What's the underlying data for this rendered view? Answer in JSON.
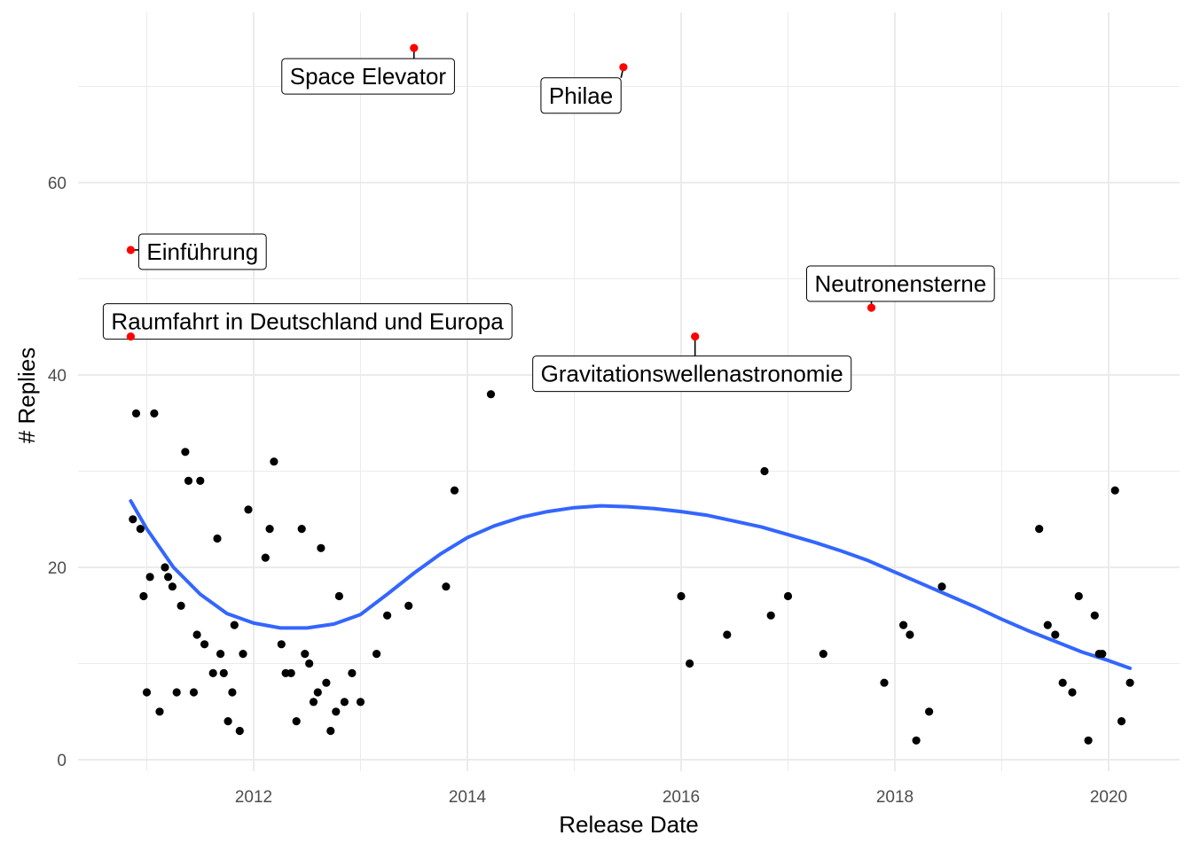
{
  "chart_data": {
    "type": "scatter",
    "xlabel": "Release Date",
    "ylabel": "# Replies",
    "xlim": [
      2010.45,
      2020.6
    ],
    "ylim": [
      -2,
      75
    ],
    "x_ticks": [
      "2012",
      "2014",
      "2016",
      "2018",
      "2020"
    ],
    "y_ticks": [
      "0",
      "20",
      "40",
      "60"
    ],
    "grid": true,
    "colors": {
      "point": "#000000",
      "highlight": "#ff0000",
      "smooth": "#3366ff",
      "grid": "#ebebeb"
    },
    "points": [
      [
        2010.87,
        25
      ],
      [
        2010.9,
        36
      ],
      [
        2010.94,
        24
      ],
      [
        2010.97,
        17
      ],
      [
        2011.0,
        7
      ],
      [
        2011.03,
        19
      ],
      [
        2011.07,
        36
      ],
      [
        2011.12,
        5
      ],
      [
        2011.17,
        20
      ],
      [
        2011.2,
        19
      ],
      [
        2011.24,
        18
      ],
      [
        2011.28,
        7
      ],
      [
        2011.32,
        16
      ],
      [
        2011.36,
        32
      ],
      [
        2011.39,
        29
      ],
      [
        2011.44,
        7
      ],
      [
        2011.47,
        13
      ],
      [
        2011.5,
        29
      ],
      [
        2011.54,
        12
      ],
      [
        2011.62,
        9
      ],
      [
        2011.66,
        23
      ],
      [
        2011.69,
        11
      ],
      [
        2011.72,
        9
      ],
      [
        2011.76,
        4
      ],
      [
        2011.8,
        7
      ],
      [
        2011.82,
        14
      ],
      [
        2011.87,
        3
      ],
      [
        2011.9,
        11
      ],
      [
        2011.95,
        26
      ],
      [
        2012.11,
        21
      ],
      [
        2012.15,
        24
      ],
      [
        2012.19,
        31
      ],
      [
        2012.26,
        12
      ],
      [
        2012.3,
        9
      ],
      [
        2012.35,
        9
      ],
      [
        2012.4,
        4
      ],
      [
        2012.45,
        24
      ],
      [
        2012.48,
        11
      ],
      [
        2012.52,
        10
      ],
      [
        2012.56,
        6
      ],
      [
        2012.6,
        7
      ],
      [
        2012.63,
        22
      ],
      [
        2012.68,
        8
      ],
      [
        2012.72,
        3
      ],
      [
        2012.77,
        5
      ],
      [
        2012.8,
        17
      ],
      [
        2012.85,
        6
      ],
      [
        2012.92,
        9
      ],
      [
        2013.0,
        6
      ],
      [
        2013.15,
        11
      ],
      [
        2013.25,
        15
      ],
      [
        2013.45,
        16
      ],
      [
        2013.8,
        18
      ],
      [
        2013.88,
        28
      ],
      [
        2014.22,
        38
      ],
      [
        2016.0,
        17
      ],
      [
        2016.08,
        10
      ],
      [
        2016.43,
        13
      ],
      [
        2016.78,
        30
      ],
      [
        2016.84,
        15
      ],
      [
        2017.0,
        17
      ],
      [
        2017.33,
        11
      ],
      [
        2017.9,
        8
      ],
      [
        2018.08,
        14
      ],
      [
        2018.14,
        13
      ],
      [
        2018.2,
        2
      ],
      [
        2018.32,
        5
      ],
      [
        2018.44,
        18
      ],
      [
        2019.35,
        24
      ],
      [
        2019.43,
        14
      ],
      [
        2019.5,
        13
      ],
      [
        2019.57,
        8
      ],
      [
        2019.66,
        7
      ],
      [
        2019.72,
        17
      ],
      [
        2019.81,
        2
      ],
      [
        2019.87,
        15
      ],
      [
        2019.91,
        11
      ],
      [
        2019.94,
        11
      ],
      [
        2020.06,
        28
      ],
      [
        2020.12,
        4
      ],
      [
        2020.2,
        8
      ]
    ],
    "highlighted": [
      {
        "x": 2010.85,
        "y": 53,
        "label": "Einführung"
      },
      {
        "x": 2010.85,
        "y": 44,
        "label": "Raumfahrt in Deutschland und Europa"
      },
      {
        "x": 2013.5,
        "y": 74,
        "label": "Space Elevator"
      },
      {
        "x": 2015.46,
        "y": 72,
        "label": "Philae"
      },
      {
        "x": 2016.13,
        "y": 44,
        "label": "Gravitationswellenastronomie"
      },
      {
        "x": 2017.78,
        "y": 47,
        "label": "Neutronensterne"
      }
    ],
    "smooth": [
      [
        2010.85,
        26.9
      ],
      [
        2011.0,
        24.0
      ],
      [
        2011.25,
        20.0
      ],
      [
        2011.5,
        17.2
      ],
      [
        2011.75,
        15.2
      ],
      [
        2012.0,
        14.2
      ],
      [
        2012.25,
        13.7
      ],
      [
        2012.5,
        13.7
      ],
      [
        2012.75,
        14.1
      ],
      [
        2013.0,
        15.1
      ],
      [
        2013.25,
        17.2
      ],
      [
        2013.5,
        19.4
      ],
      [
        2013.75,
        21.4
      ],
      [
        2014.0,
        23.1
      ],
      [
        2014.25,
        24.3
      ],
      [
        2014.5,
        25.2
      ],
      [
        2014.75,
        25.8
      ],
      [
        2015.0,
        26.2
      ],
      [
        2015.25,
        26.4
      ],
      [
        2015.5,
        26.3
      ],
      [
        2015.75,
        26.1
      ],
      [
        2016.0,
        25.8
      ],
      [
        2016.25,
        25.4
      ],
      [
        2016.5,
        24.8
      ],
      [
        2016.75,
        24.2
      ],
      [
        2017.0,
        23.4
      ],
      [
        2017.25,
        22.6
      ],
      [
        2017.5,
        21.7
      ],
      [
        2017.75,
        20.7
      ],
      [
        2018.0,
        19.5
      ],
      [
        2018.25,
        18.3
      ],
      [
        2018.5,
        17.1
      ],
      [
        2018.75,
        15.9
      ],
      [
        2019.0,
        14.6
      ],
      [
        2019.25,
        13.4
      ],
      [
        2019.5,
        12.3
      ],
      [
        2019.75,
        11.2
      ],
      [
        2020.0,
        10.3
      ],
      [
        2020.2,
        9.5
      ]
    ]
  }
}
